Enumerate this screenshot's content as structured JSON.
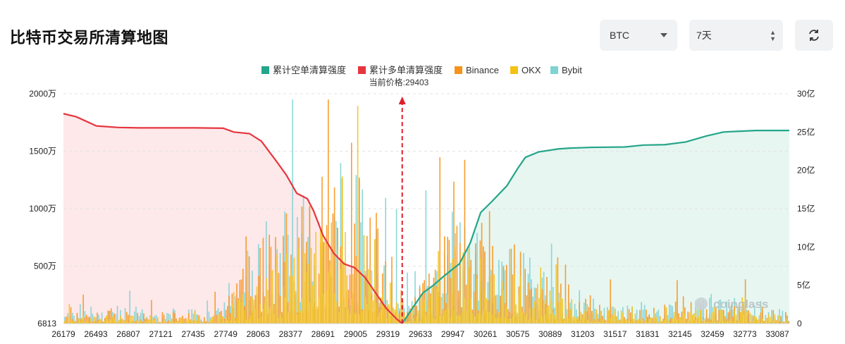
{
  "header": {
    "title": "比特币交易所清算地图",
    "coin_select": "BTC",
    "range_select": "7天"
  },
  "colors": {
    "short_cum": "#25a589",
    "long_cum": "#e5363f",
    "binance": "#f7931a",
    "okx": "#f4c215",
    "bybit": "#7fd3d3",
    "short_fill": "#e7f6f1",
    "long_fill": "#fde8ea"
  },
  "chart_data": {
    "type": "bar",
    "current_price_label": "当前价格:29403",
    "current_price": 29403,
    "legend": [
      {
        "name": "累计空单清算强度",
        "color": "#25a589"
      },
      {
        "name": "累计多单清算强度",
        "color": "#e5363f"
      },
      {
        "name": "Binance",
        "color": "#f7931a"
      },
      {
        "name": "OKX",
        "color": "#f4c215"
      },
      {
        "name": "Bybit",
        "color": "#7fd3d3"
      }
    ],
    "x_ticks": [
      "26179",
      "26493",
      "26807",
      "27121",
      "27435",
      "27749",
      "28063",
      "28377",
      "28691",
      "29005",
      "29319",
      "29633",
      "29947",
      "30261",
      "30575",
      "30889",
      "31203",
      "31517",
      "31831",
      "32145",
      "32459",
      "32773",
      "33087"
    ],
    "xlim": [
      26179,
      33087
    ],
    "y_left_ticks": [
      "6813",
      "500万",
      "1000万",
      "1500万",
      "2000万"
    ],
    "y_left_values": [
      6813,
      5000000,
      10000000,
      15000000,
      20000000
    ],
    "ylim_left": [
      6813,
      20000000
    ],
    "y_right_ticks": [
      "0",
      "5亿",
      "10亿",
      "15亿",
      "20亿",
      "25亿",
      "30亿"
    ],
    "y_right_values": [
      0,
      500000000,
      1000000000,
      1500000000,
      2000000000,
      2500000000,
      3000000000
    ],
    "ylim_right": [
      0,
      3000000000
    ],
    "long_cumulative": {
      "x": [
        26179,
        26300,
        26493,
        26700,
        26900,
        27121,
        27435,
        27700,
        27800,
        27950,
        28063,
        28200,
        28300,
        28400,
        28500,
        28560,
        28650,
        28750,
        28850,
        28950,
        29050,
        29150,
        29250,
        29350,
        29403
      ],
      "y": [
        2740000000,
        2700000000,
        2580000000,
        2560000000,
        2555000000,
        2555000000,
        2555000000,
        2550000000,
        2500000000,
        2480000000,
        2380000000,
        2130000000,
        1940000000,
        1700000000,
        1630000000,
        1470000000,
        1150000000,
        920000000,
        780000000,
        730000000,
        600000000,
        400000000,
        200000000,
        60000000,
        0
      ]
    },
    "short_cumulative": {
      "x": [
        29403,
        29500,
        29600,
        29700,
        29800,
        29947,
        30050,
        30150,
        30261,
        30400,
        30500,
        30575,
        30700,
        30889,
        31000,
        31203,
        31517,
        31700,
        31900,
        32100,
        32300,
        32459,
        32600,
        32773,
        33087
      ],
      "y": [
        0,
        200000000,
        400000000,
        500000000,
        620000000,
        780000000,
        1050000000,
        1450000000,
        1600000000,
        1800000000,
        2020000000,
        2170000000,
        2240000000,
        2280000000,
        2290000000,
        2300000000,
        2305000000,
        2330000000,
        2335000000,
        2370000000,
        2450000000,
        2500000000,
        2510000000,
        2520000000,
        2520000000
      ]
    },
    "exchange_profile": {
      "binance": {
        "base_x": [
          26179,
          27600,
          28000,
          28500,
          28900,
          29100,
          29403,
          29600,
          29900,
          30300,
          30700,
          31100,
          31600,
          32100,
          32500,
          33087
        ],
        "base_y": [
          900000,
          600000,
          4200000,
          6500000,
          9500000,
          7200000,
          1500000,
          2200000,
          6500000,
          4800000,
          2800000,
          1500000,
          800000,
          1200000,
          1200000,
          600000
        ]
      },
      "okx": {
        "base_x": [
          26179,
          27600,
          28000,
          28500,
          28900,
          29100,
          29403,
          29600,
          29900,
          30300,
          30700,
          31100,
          31600,
          32100,
          32500,
          33087
        ],
        "base_y": [
          500000,
          400000,
          2800000,
          4500000,
          6000000,
          4800000,
          900000,
          1600000,
          4200000,
          3200000,
          2000000,
          1000000,
          500000,
          900000,
          900000,
          400000
        ]
      },
      "bybit": {
        "base_x": [
          26179,
          27600,
          28000,
          28500,
          28900,
          29100,
          29403,
          29600,
          29900,
          30300,
          30700,
          31100,
          31600,
          32100,
          32500,
          33087
        ],
        "base_y": [
          1100000,
          700000,
          4500000,
          6800000,
          8600000,
          6000000,
          1800000,
          3200000,
          5800000,
          4600000,
          3000000,
          1500000,
          900000,
          1500000,
          1600000,
          800000
        ]
      }
    }
  },
  "watermark": "coinglass"
}
